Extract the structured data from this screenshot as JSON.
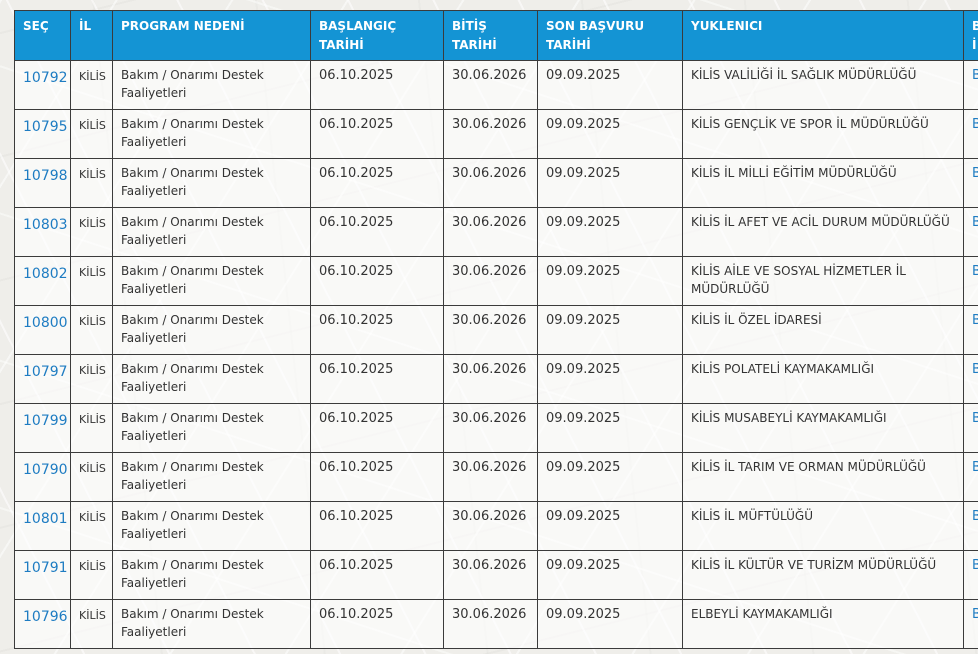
{
  "colors": {
    "header_bg": "#1494d4",
    "header_text": "#ffffff",
    "link": "#1e7cc2",
    "body_text": "#333333",
    "border": "#3b3b3b",
    "page_bg": "#efeeea"
  },
  "table": {
    "header": {
      "sec": "SEÇ",
      "il": "İL",
      "program": "PROGRAM NEDENİ",
      "baslangic_l1": "BAŞLANGIÇ",
      "baslangic_l2": "TARİHİ",
      "bitis_l1": "BİTİŞ",
      "bitis_l2": "TARİHİ",
      "son_l1": "SON BAŞVURU",
      "son_l2": "TARİHİ",
      "yuklenici": "YUKLENICI",
      "action_l1": "B",
      "action_l2": "İ"
    },
    "rows": [
      {
        "id": "10792",
        "il": "KİLİS",
        "program": "Bakım / Onarımı Destek Faaliyetleri",
        "start": "06.10.2025",
        "end": "30.06.2026",
        "deadline": "09.09.2025",
        "yuklenici": "KİLİS VALİLİĞİ İL SAĞLIK MÜDÜRLÜĞÜ",
        "action": "B"
      },
      {
        "id": "10795",
        "il": "KİLİS",
        "program": "Bakım / Onarımı Destek Faaliyetleri",
        "start": "06.10.2025",
        "end": "30.06.2026",
        "deadline": "09.09.2025",
        "yuklenici": "KİLİS GENÇLİK VE SPOR İL MÜDÜRLÜĞÜ",
        "action": "B"
      },
      {
        "id": "10798",
        "il": "KİLİS",
        "program": "Bakım / Onarımı Destek Faaliyetleri",
        "start": "06.10.2025",
        "end": "30.06.2026",
        "deadline": "09.09.2025",
        "yuklenici": "KİLİS İL MİLLİ EĞİTİM MÜDÜRLÜĞÜ",
        "action": "B"
      },
      {
        "id": "10803",
        "il": "KİLİS",
        "program": "Bakım / Onarımı Destek Faaliyetleri",
        "start": "06.10.2025",
        "end": "30.06.2026",
        "deadline": "09.09.2025",
        "yuklenici": "KİLİS İL AFET VE ACİL DURUM MÜDÜRLÜĞÜ",
        "action": "B"
      },
      {
        "id": "10802",
        "il": "KİLİS",
        "program": "Bakım / Onarımı Destek Faaliyetleri",
        "start": "06.10.2025",
        "end": "30.06.2026",
        "deadline": "09.09.2025",
        "yuklenici": "KİLİS AİLE VE SOSYAL HİZMETLER İL MÜDÜRLÜĞÜ",
        "action": "B"
      },
      {
        "id": "10800",
        "il": "KİLİS",
        "program": "Bakım / Onarımı Destek Faaliyetleri",
        "start": "06.10.2025",
        "end": "30.06.2026",
        "deadline": "09.09.2025",
        "yuklenici": "KİLİS İL ÖZEL İDARESİ",
        "action": "B"
      },
      {
        "id": "10797",
        "il": "KİLİS",
        "program": "Bakım / Onarımı Destek Faaliyetleri",
        "start": "06.10.2025",
        "end": "30.06.2026",
        "deadline": "09.09.2025",
        "yuklenici": "KİLİS POLATELİ KAYMAKAMLIĞI",
        "action": "B"
      },
      {
        "id": "10799",
        "il": "KİLİS",
        "program": "Bakım / Onarımı Destek Faaliyetleri",
        "start": "06.10.2025",
        "end": "30.06.2026",
        "deadline": "09.09.2025",
        "yuklenici": "KİLİS MUSABEYLİ KAYMAKAMLIĞI",
        "action": "B"
      },
      {
        "id": "10790",
        "il": "KİLİS",
        "program": "Bakım / Onarımı Destek Faaliyetleri",
        "start": "06.10.2025",
        "end": "30.06.2026",
        "deadline": "09.09.2025",
        "yuklenici": "KİLİS İL TARIM VE ORMAN MÜDÜRLÜĞÜ",
        "action": "B"
      },
      {
        "id": "10801",
        "il": "KİLİS",
        "program": "Bakım / Onarımı Destek Faaliyetleri",
        "start": "06.10.2025",
        "end": "30.06.2026",
        "deadline": "09.09.2025",
        "yuklenici": "KİLİS İL MÜFTÜLÜĞÜ",
        "action": "B"
      },
      {
        "id": "10791",
        "il": "KİLİS",
        "program": "Bakım / Onarımı Destek Faaliyetleri",
        "start": "06.10.2025",
        "end": "30.06.2026",
        "deadline": "09.09.2025",
        "yuklenici": "KİLİS İL KÜLTÜR VE TURİZM MÜDÜRLÜĞÜ",
        "action": "B"
      },
      {
        "id": "10796",
        "il": "KİLİS",
        "program": "Bakım / Onarımı Destek Faaliyetleri",
        "start": "06.10.2025",
        "end": "30.06.2026",
        "deadline": "09.09.2025",
        "yuklenici": "ELBEYLİ KAYMAKAMLIĞI",
        "action": "B"
      }
    ]
  }
}
